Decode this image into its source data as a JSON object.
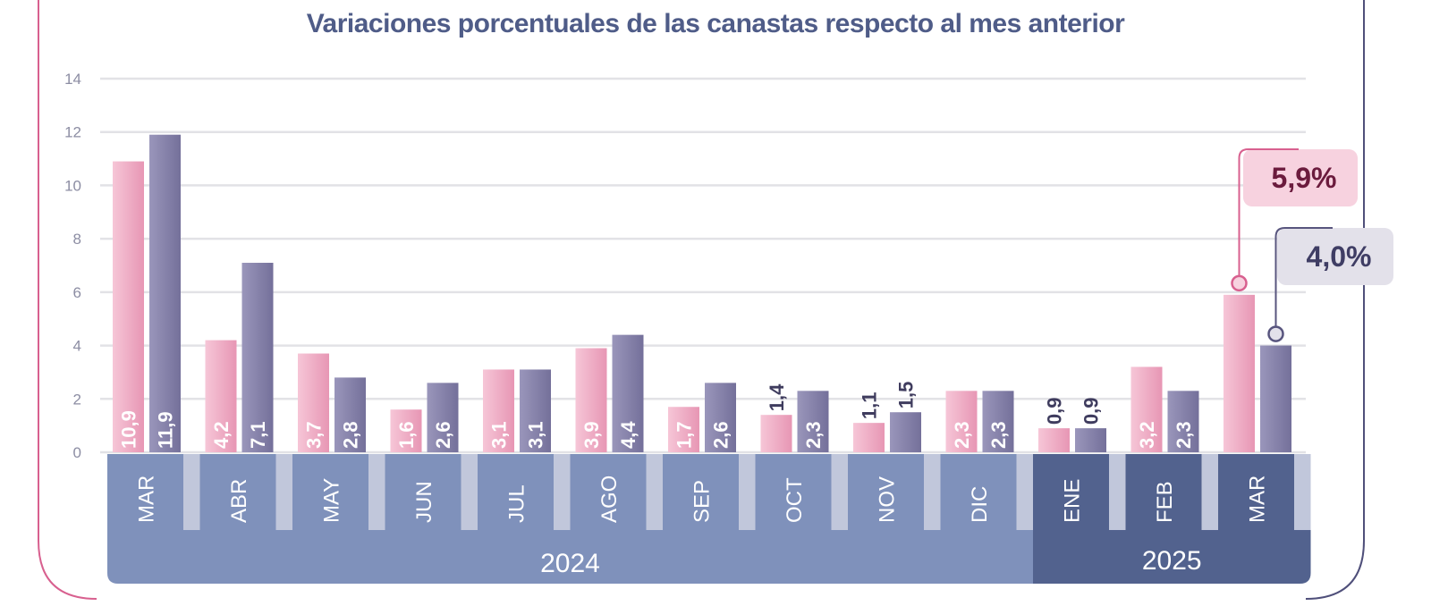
{
  "chart_data": {
    "type": "bar",
    "title": "Variaciones porcentuales de las canastas respecto al mes anterior",
    "xlabel": "",
    "ylabel": "",
    "ylim": [
      0,
      14
    ],
    "yticks": [
      0,
      2,
      4,
      6,
      8,
      10,
      12,
      14
    ],
    "grid": true,
    "categories": [
      "MAR",
      "ABR",
      "MAY",
      "JUN",
      "JUL",
      "AGO",
      "SEP",
      "OCT",
      "NOV",
      "DIC",
      "ENE",
      "FEB",
      "MAR"
    ],
    "category_years": [
      "2024",
      "2024",
      "2024",
      "2024",
      "2024",
      "2024",
      "2024",
      "2024",
      "2024",
      "2024",
      "2025",
      "2025",
      "2025"
    ],
    "year_groups": [
      {
        "label": "2024",
        "count": 10
      },
      {
        "label": "2025",
        "count": 3
      }
    ],
    "series": [
      {
        "values": [
          10.9,
          4.2,
          3.7,
          1.6,
          3.1,
          3.9,
          1.7,
          1.4,
          1.1,
          2.3,
          0.9,
          3.2,
          5.9
        ],
        "labels": [
          "10,9",
          "4,2",
          "3,7",
          "1,6",
          "3,1",
          "3,9",
          "1,7",
          "1,4",
          "1,1",
          "2,3",
          "0,9",
          "3,2",
          ""
        ],
        "color": "#eeaac3"
      },
      {
        "values": [
          11.9,
          7.1,
          2.8,
          2.6,
          3.1,
          4.4,
          2.6,
          2.3,
          1.5,
          2.3,
          0.9,
          2.3,
          4.0
        ],
        "labels": [
          "11,9",
          "7,1",
          "2,8",
          "2,6",
          "3,1",
          "4,4",
          "2,6",
          "2,3",
          "1,5",
          "2,3",
          "0,9",
          "2,3",
          ""
        ],
        "color": "#847fa6"
      }
    ],
    "callouts": [
      {
        "series": 0,
        "category": 12,
        "label": "5,9%"
      },
      {
        "series": 1,
        "category": 12,
        "label": "4,0%"
      }
    ]
  },
  "colors": {
    "title": "#4f5c88",
    "axis_text": "#8c8da3",
    "grid": "#e2e2e6",
    "band_light": "#7f91bb",
    "band_dark": "#52628e",
    "band_gap": "#c1c7db",
    "frame_left": "#d8608f",
    "frame_right": "#4f4f7a",
    "bar_label_outside": "#3f3c5e",
    "callout_pink_bg": "#f7d2df",
    "callout_pink_text": "#6b1b3d",
    "callout_pink_line": "#d8608f",
    "callout_gray_bg": "#e3e1ea",
    "callout_gray_text": "#3f3d64",
    "callout_gray_line": "#58557e"
  }
}
